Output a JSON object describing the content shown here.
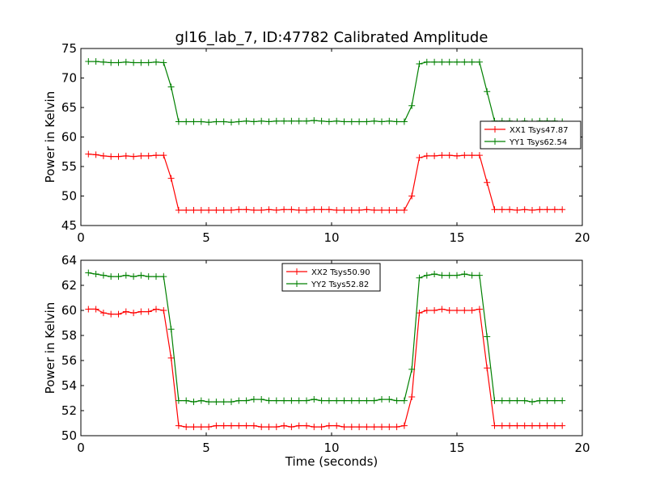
{
  "chart_data": [
    {
      "type": "line",
      "title": "gl16_lab_7, ID:47782 Calibrated Amplitude",
      "xlabel": "",
      "ylabel": "Power in Kelvin",
      "xlim": [
        0,
        20
      ],
      "ylim": [
        45,
        75
      ],
      "xticks": [
        0,
        5,
        10,
        15,
        20
      ],
      "yticks": [
        45,
        50,
        55,
        60,
        65,
        70,
        75
      ],
      "grid": false,
      "legend_position": "center-right",
      "x": [
        0.3,
        0.6,
        0.9,
        1.2,
        1.5,
        1.8,
        2.1,
        2.4,
        2.7,
        3.0,
        3.3,
        3.6,
        3.9,
        4.2,
        4.5,
        4.8,
        5.1,
        5.4,
        5.7,
        6.0,
        6.3,
        6.6,
        6.9,
        7.2,
        7.5,
        7.8,
        8.1,
        8.4,
        8.7,
        9.0,
        9.3,
        9.6,
        9.9,
        10.2,
        10.5,
        10.8,
        11.1,
        11.4,
        11.7,
        12.0,
        12.3,
        12.6,
        12.9,
        13.2,
        13.5,
        13.8,
        14.1,
        14.4,
        14.7,
        15.0,
        15.3,
        15.6,
        15.9,
        16.2,
        16.5,
        16.8,
        17.1,
        17.4,
        17.7,
        18.0,
        18.3,
        18.6,
        18.9,
        19.2
      ],
      "series": [
        {
          "name": "XX1 Tsys47.87",
          "color": "#ff0000",
          "values": [
            57.1,
            57.0,
            56.8,
            56.7,
            56.7,
            56.8,
            56.7,
            56.8,
            56.8,
            56.9,
            56.9,
            53.0,
            47.6,
            47.6,
            47.6,
            47.6,
            47.6,
            47.6,
            47.6,
            47.6,
            47.7,
            47.7,
            47.6,
            47.6,
            47.7,
            47.6,
            47.7,
            47.7,
            47.6,
            47.6,
            47.7,
            47.7,
            47.7,
            47.6,
            47.6,
            47.6,
            47.6,
            47.7,
            47.6,
            47.6,
            47.6,
            47.6,
            47.6,
            50.0,
            56.5,
            56.8,
            56.8,
            56.9,
            56.9,
            56.8,
            56.9,
            56.9,
            56.9,
            52.3,
            47.7,
            47.7,
            47.7,
            47.6,
            47.7,
            47.6,
            47.7,
            47.7,
            47.7,
            47.7
          ]
        },
        {
          "name": "YY1 Tsys62.54",
          "color": "#008000",
          "values": [
            72.8,
            72.8,
            72.7,
            72.6,
            72.6,
            72.7,
            72.6,
            72.6,
            72.6,
            72.7,
            72.6,
            68.5,
            62.6,
            62.6,
            62.6,
            62.6,
            62.5,
            62.6,
            62.6,
            62.5,
            62.6,
            62.7,
            62.6,
            62.7,
            62.6,
            62.7,
            62.7,
            62.7,
            62.7,
            62.7,
            62.8,
            62.7,
            62.6,
            62.7,
            62.6,
            62.6,
            62.6,
            62.6,
            62.7,
            62.6,
            62.7,
            62.6,
            62.6,
            65.3,
            72.4,
            72.7,
            72.7,
            72.7,
            72.7,
            72.7,
            72.7,
            72.7,
            72.7,
            67.7,
            62.7,
            62.7,
            62.7,
            62.6,
            62.7,
            62.6,
            62.7,
            62.7,
            62.7,
            62.6
          ]
        }
      ]
    },
    {
      "type": "line",
      "title": "",
      "xlabel": "Time (seconds)",
      "ylabel": "Power in Kelvin",
      "xlim": [
        0,
        20
      ],
      "ylim": [
        50,
        64
      ],
      "xticks": [
        0,
        5,
        10,
        15,
        20
      ],
      "yticks": [
        50,
        52,
        54,
        56,
        58,
        60,
        62,
        64
      ],
      "grid": false,
      "legend_position": "top-center",
      "x": [
        0.3,
        0.6,
        0.9,
        1.2,
        1.5,
        1.8,
        2.1,
        2.4,
        2.7,
        3.0,
        3.3,
        3.6,
        3.9,
        4.2,
        4.5,
        4.8,
        5.1,
        5.4,
        5.7,
        6.0,
        6.3,
        6.6,
        6.9,
        7.2,
        7.5,
        7.8,
        8.1,
        8.4,
        8.7,
        9.0,
        9.3,
        9.6,
        9.9,
        10.2,
        10.5,
        10.8,
        11.1,
        11.4,
        11.7,
        12.0,
        12.3,
        12.6,
        12.9,
        13.2,
        13.5,
        13.8,
        14.1,
        14.4,
        14.7,
        15.0,
        15.3,
        15.6,
        15.9,
        16.2,
        16.5,
        16.8,
        17.1,
        17.4,
        17.7,
        18.0,
        18.3,
        18.6,
        18.9,
        19.2
      ],
      "series": [
        {
          "name": "XX2 Tsys50.90",
          "color": "#ff0000",
          "values": [
            60.1,
            60.1,
            59.8,
            59.7,
            59.7,
            59.9,
            59.8,
            59.9,
            59.9,
            60.1,
            60.0,
            56.2,
            50.8,
            50.7,
            50.7,
            50.7,
            50.7,
            50.8,
            50.8,
            50.8,
            50.8,
            50.8,
            50.8,
            50.7,
            50.7,
            50.7,
            50.8,
            50.7,
            50.8,
            50.8,
            50.7,
            50.7,
            50.8,
            50.8,
            50.7,
            50.7,
            50.7,
            50.7,
            50.7,
            50.7,
            50.7,
            50.7,
            50.8,
            53.1,
            59.8,
            60.0,
            60.0,
            60.1,
            60.0,
            60.0,
            60.0,
            60.0,
            60.1,
            55.4,
            50.8,
            50.8,
            50.8,
            50.8,
            50.8,
            50.8,
            50.8,
            50.8,
            50.8,
            50.8
          ]
        },
        {
          "name": "YY2 Tsys52.82",
          "color": "#008000",
          "values": [
            63.0,
            62.9,
            62.8,
            62.7,
            62.7,
            62.8,
            62.7,
            62.8,
            62.7,
            62.7,
            62.7,
            58.5,
            52.8,
            52.8,
            52.7,
            52.8,
            52.7,
            52.7,
            52.7,
            52.7,
            52.8,
            52.8,
            52.9,
            52.9,
            52.8,
            52.8,
            52.8,
            52.8,
            52.8,
            52.8,
            52.9,
            52.8,
            52.8,
            52.8,
            52.8,
            52.8,
            52.8,
            52.8,
            52.8,
            52.9,
            52.9,
            52.8,
            52.8,
            55.3,
            62.6,
            62.8,
            62.9,
            62.8,
            62.8,
            62.8,
            62.9,
            62.8,
            62.8,
            57.9,
            52.8,
            52.8,
            52.8,
            52.8,
            52.8,
            52.7,
            52.8,
            52.8,
            52.8,
            52.8
          ]
        }
      ]
    }
  ]
}
